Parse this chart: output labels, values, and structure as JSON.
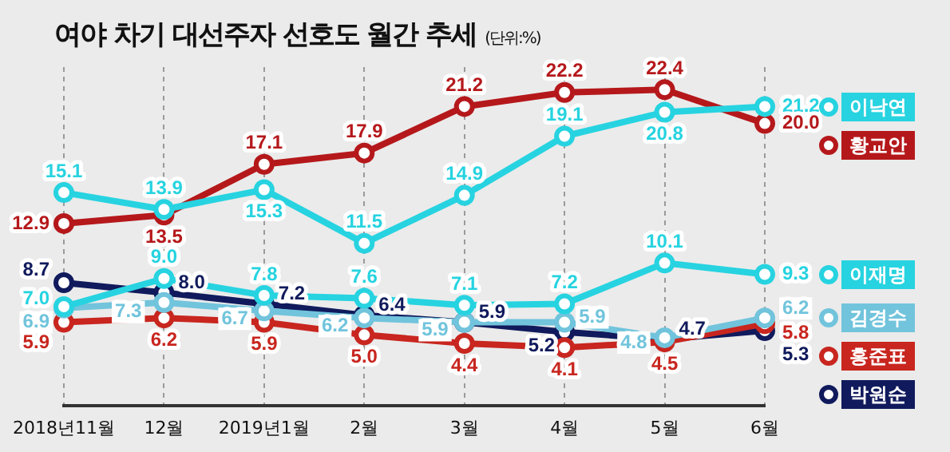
{
  "chart_data": {
    "type": "line",
    "title": "여야 차기 대선주자 선호도 월간 추세",
    "subtitle": "(단위:%)",
    "categories": [
      "2018년11월",
      "12월",
      "2019년1월",
      "2월",
      "3월",
      "4월",
      "5월",
      "6월"
    ],
    "series": [
      {
        "name": "이낙연",
        "color": "#27d3e0",
        "values": [
          15.1,
          13.9,
          15.3,
          11.5,
          14.9,
          19.1,
          20.8,
          21.2
        ],
        "value_labels": [
          "15.1",
          "13.9",
          "15.3",
          "11.5",
          "14.9",
          "19.1",
          "20.8",
          "21.2"
        ]
      },
      {
        "name": "황교안",
        "color": "#b5181b",
        "values": [
          12.9,
          13.5,
          17.1,
          17.9,
          21.2,
          22.2,
          22.4,
          20.0
        ],
        "value_labels": [
          "12.9",
          "13.5",
          "17.1",
          "17.9",
          "21.2",
          "22.2",
          "22.4",
          "20.0"
        ]
      },
      {
        "name": "이재명",
        "color": "#27d3e0",
        "values": [
          7.0,
          9.0,
          7.8,
          7.6,
          7.1,
          7.2,
          10.1,
          9.3
        ],
        "value_labels": [
          "7.0",
          "9.0",
          "7.8",
          "7.6",
          "7.1",
          "7.2",
          "10.1",
          "9.3"
        ]
      },
      {
        "name": "김경수",
        "color": "#71c4dc",
        "values": [
          6.9,
          7.3,
          6.7,
          6.2,
          5.9,
          5.9,
          4.8,
          6.2
        ],
        "value_labels": [
          "6.9",
          "7.3",
          "6.7",
          "6.2",
          "5.9",
          "5.9",
          "4.8",
          "6.2"
        ]
      },
      {
        "name": "홍준표",
        "color": "#c8261f",
        "values": [
          5.9,
          6.2,
          5.9,
          5.0,
          4.4,
          4.1,
          4.5,
          5.8
        ],
        "value_labels": [
          "5.9",
          "6.2",
          "5.9",
          "5.0",
          "4.4",
          "4.1",
          "4.5",
          "5.8"
        ]
      },
      {
        "name": "박원순",
        "color": "#101a5c",
        "values": [
          8.7,
          8.0,
          7.2,
          6.4,
          5.9,
          5.2,
          4.7,
          5.3
        ],
        "value_labels": [
          "8.7",
          "8.0",
          "7.2",
          "6.4",
          "5.9",
          "5.2",
          "4.7",
          "5.3"
        ]
      }
    ],
    "ylim": [
      0,
      24
    ],
    "tick_labels": "x",
    "grid": "x",
    "legend": "right",
    "marker": "circle",
    "line_style": "solid"
  }
}
